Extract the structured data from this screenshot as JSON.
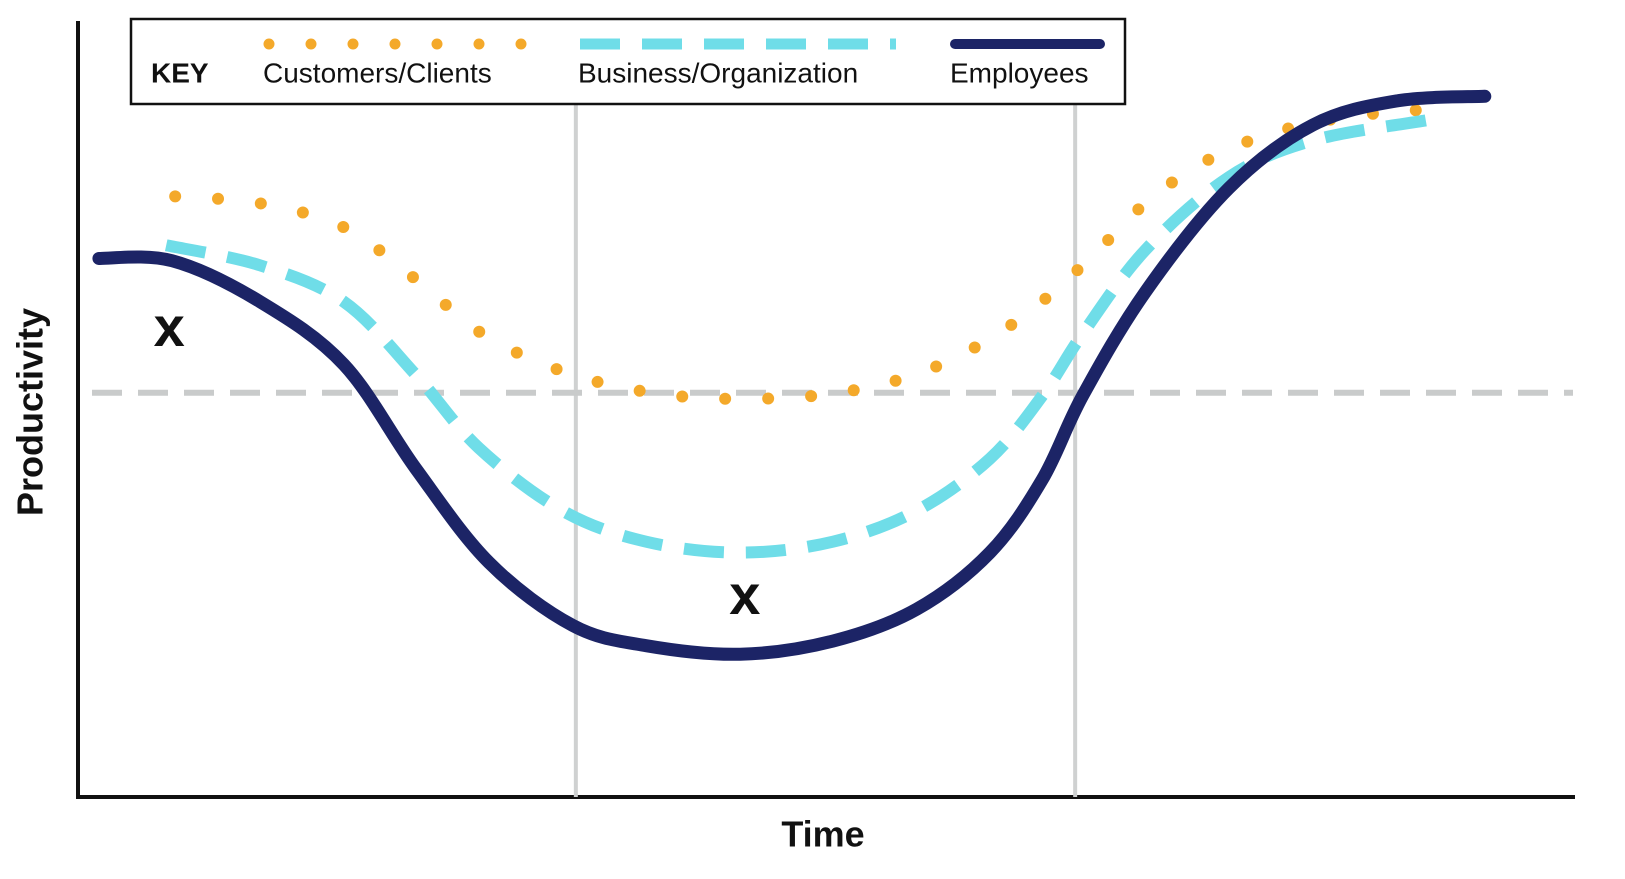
{
  "chart_data": {
    "type": "line",
    "x_label": "Time",
    "y_label": "Productivity",
    "xlim": [
      0,
      100
    ],
    "ylim": [
      0,
      100
    ],
    "legend_title": "KEY",
    "legend_position": "top",
    "reference_lines": {
      "x": [
        33.3,
        66.7
      ],
      "y": [
        52.1
      ]
    },
    "annotations": [
      {
        "text": "x",
        "x": 6.1,
        "y": 60.0
      },
      {
        "text": "x",
        "x": 44.6,
        "y": 25.5
      }
    ],
    "series": [
      {
        "name": "Customers/Clients",
        "color": "#f4a92a",
        "style": "dotted",
        "x": [
          6.5,
          12.2,
          17.8,
          22.6,
          27.2,
          32.8,
          38.7,
          44.6,
          50.9,
          56.8,
          62.4,
          67.2,
          71.8,
          76.7,
          81.9,
          87.8,
          90.6
        ],
        "values": [
          77.4,
          76.5,
          73.4,
          66.7,
          59.5,
          54.6,
          52.0,
          51.3,
          52.1,
          55.0,
          60.8,
          68.5,
          77.2,
          83.2,
          86.6,
          88.3,
          88.5
        ]
      },
      {
        "name": "Business/Organization",
        "color": "#6fdde8",
        "style": "dashed",
        "x": [
          5.9,
          12.2,
          17.8,
          22.6,
          26.8,
          32.4,
          38.0,
          44.3,
          50.5,
          56.1,
          61.0,
          64.5,
          67.2,
          71.4,
          77.0,
          82.6,
          90.2
        ],
        "values": [
          71.1,
          68.5,
          63.8,
          54.4,
          45.0,
          36.9,
          32.9,
          31.5,
          32.9,
          36.9,
          43.6,
          51.7,
          59.7,
          70.5,
          79.9,
          84.6,
          87.2
        ]
      },
      {
        "name": "Employees",
        "color": "#1c2466",
        "style": "solid",
        "x": [
          1.4,
          6.3,
          12.2,
          17.8,
          22.6,
          27.5,
          33.1,
          38.0,
          44.3,
          50.5,
          56.1,
          61.0,
          64.5,
          67.2,
          71.4,
          77.0,
          82.6,
          88.2,
          94.1
        ],
        "values": [
          69.4,
          69.1,
          63.8,
          55.7,
          42.3,
          30.2,
          22.1,
          19.5,
          18.4,
          20.1,
          24.2,
          31.5,
          40.9,
          51.7,
          65.1,
          78.5,
          86.6,
          89.7,
          90.3
        ]
      }
    ]
  }
}
